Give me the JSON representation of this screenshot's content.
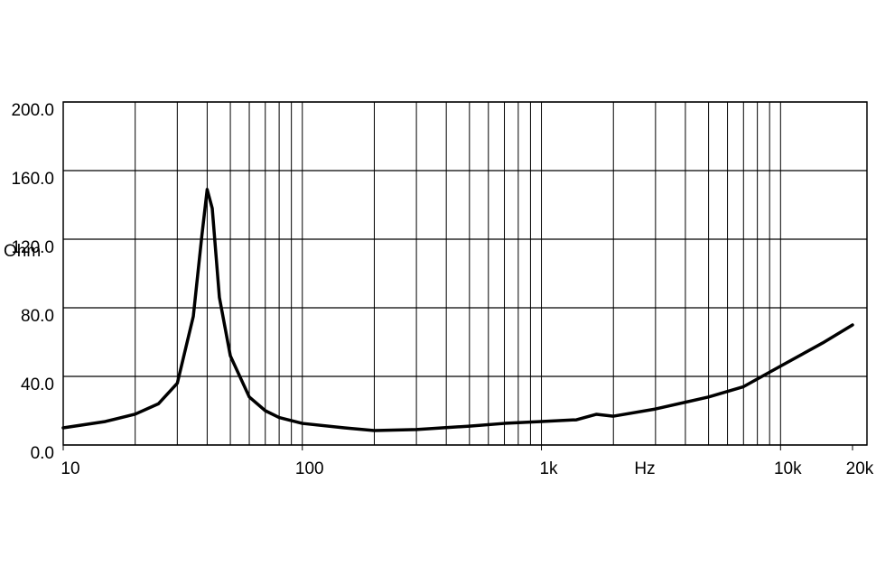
{
  "chart_data": {
    "type": "line",
    "x_label": "Hz",
    "y_label": "Ohm",
    "xscale": "log",
    "xlim": [
      10,
      20000
    ],
    "ylim": [
      0,
      200
    ],
    "xticks": [
      10,
      100,
      {
        "value": 1000,
        "label": "1k"
      },
      {
        "value": 10000,
        "label": "10k"
      },
      {
        "value": 20000,
        "label": "20k"
      }
    ],
    "xgrid": [
      20,
      30,
      40,
      50,
      60,
      70,
      80,
      90,
      100,
      200,
      300,
      400,
      500,
      600,
      700,
      800,
      900,
      1000,
      2000,
      3000,
      4000,
      5000,
      6000,
      7000,
      8000,
      9000,
      10000
    ],
    "yticks": [
      {
        "value": 0,
        "label": "0.0"
      },
      {
        "value": 40,
        "label": "40.0"
      },
      {
        "value": 80,
        "label": "80.0"
      },
      {
        "value": 120,
        "label": "120.0"
      },
      {
        "value": 160,
        "label": "160.0"
      },
      {
        "value": 200,
        "label": "200.0"
      }
    ],
    "grid": true,
    "series": [
      {
        "color": "#000000",
        "x": [
          10,
          15,
          20,
          25,
          30,
          35,
          38,
          40,
          42,
          45,
          50,
          60,
          70,
          80,
          100,
          150,
          200,
          300,
          500,
          700,
          1000,
          1400,
          1700,
          2000,
          3000,
          5000,
          7000,
          10000,
          15000,
          20000
        ],
        "values": [
          10,
          13.7,
          18,
          24,
          36,
          75,
          122,
          149,
          138,
          86,
          52,
          28,
          20,
          16,
          12.6,
          10,
          8.4,
          9,
          11,
          12.6,
          13.7,
          14.7,
          17.9,
          16.8,
          21,
          28,
          34,
          46,
          59.5,
          70
        ]
      }
    ]
  }
}
